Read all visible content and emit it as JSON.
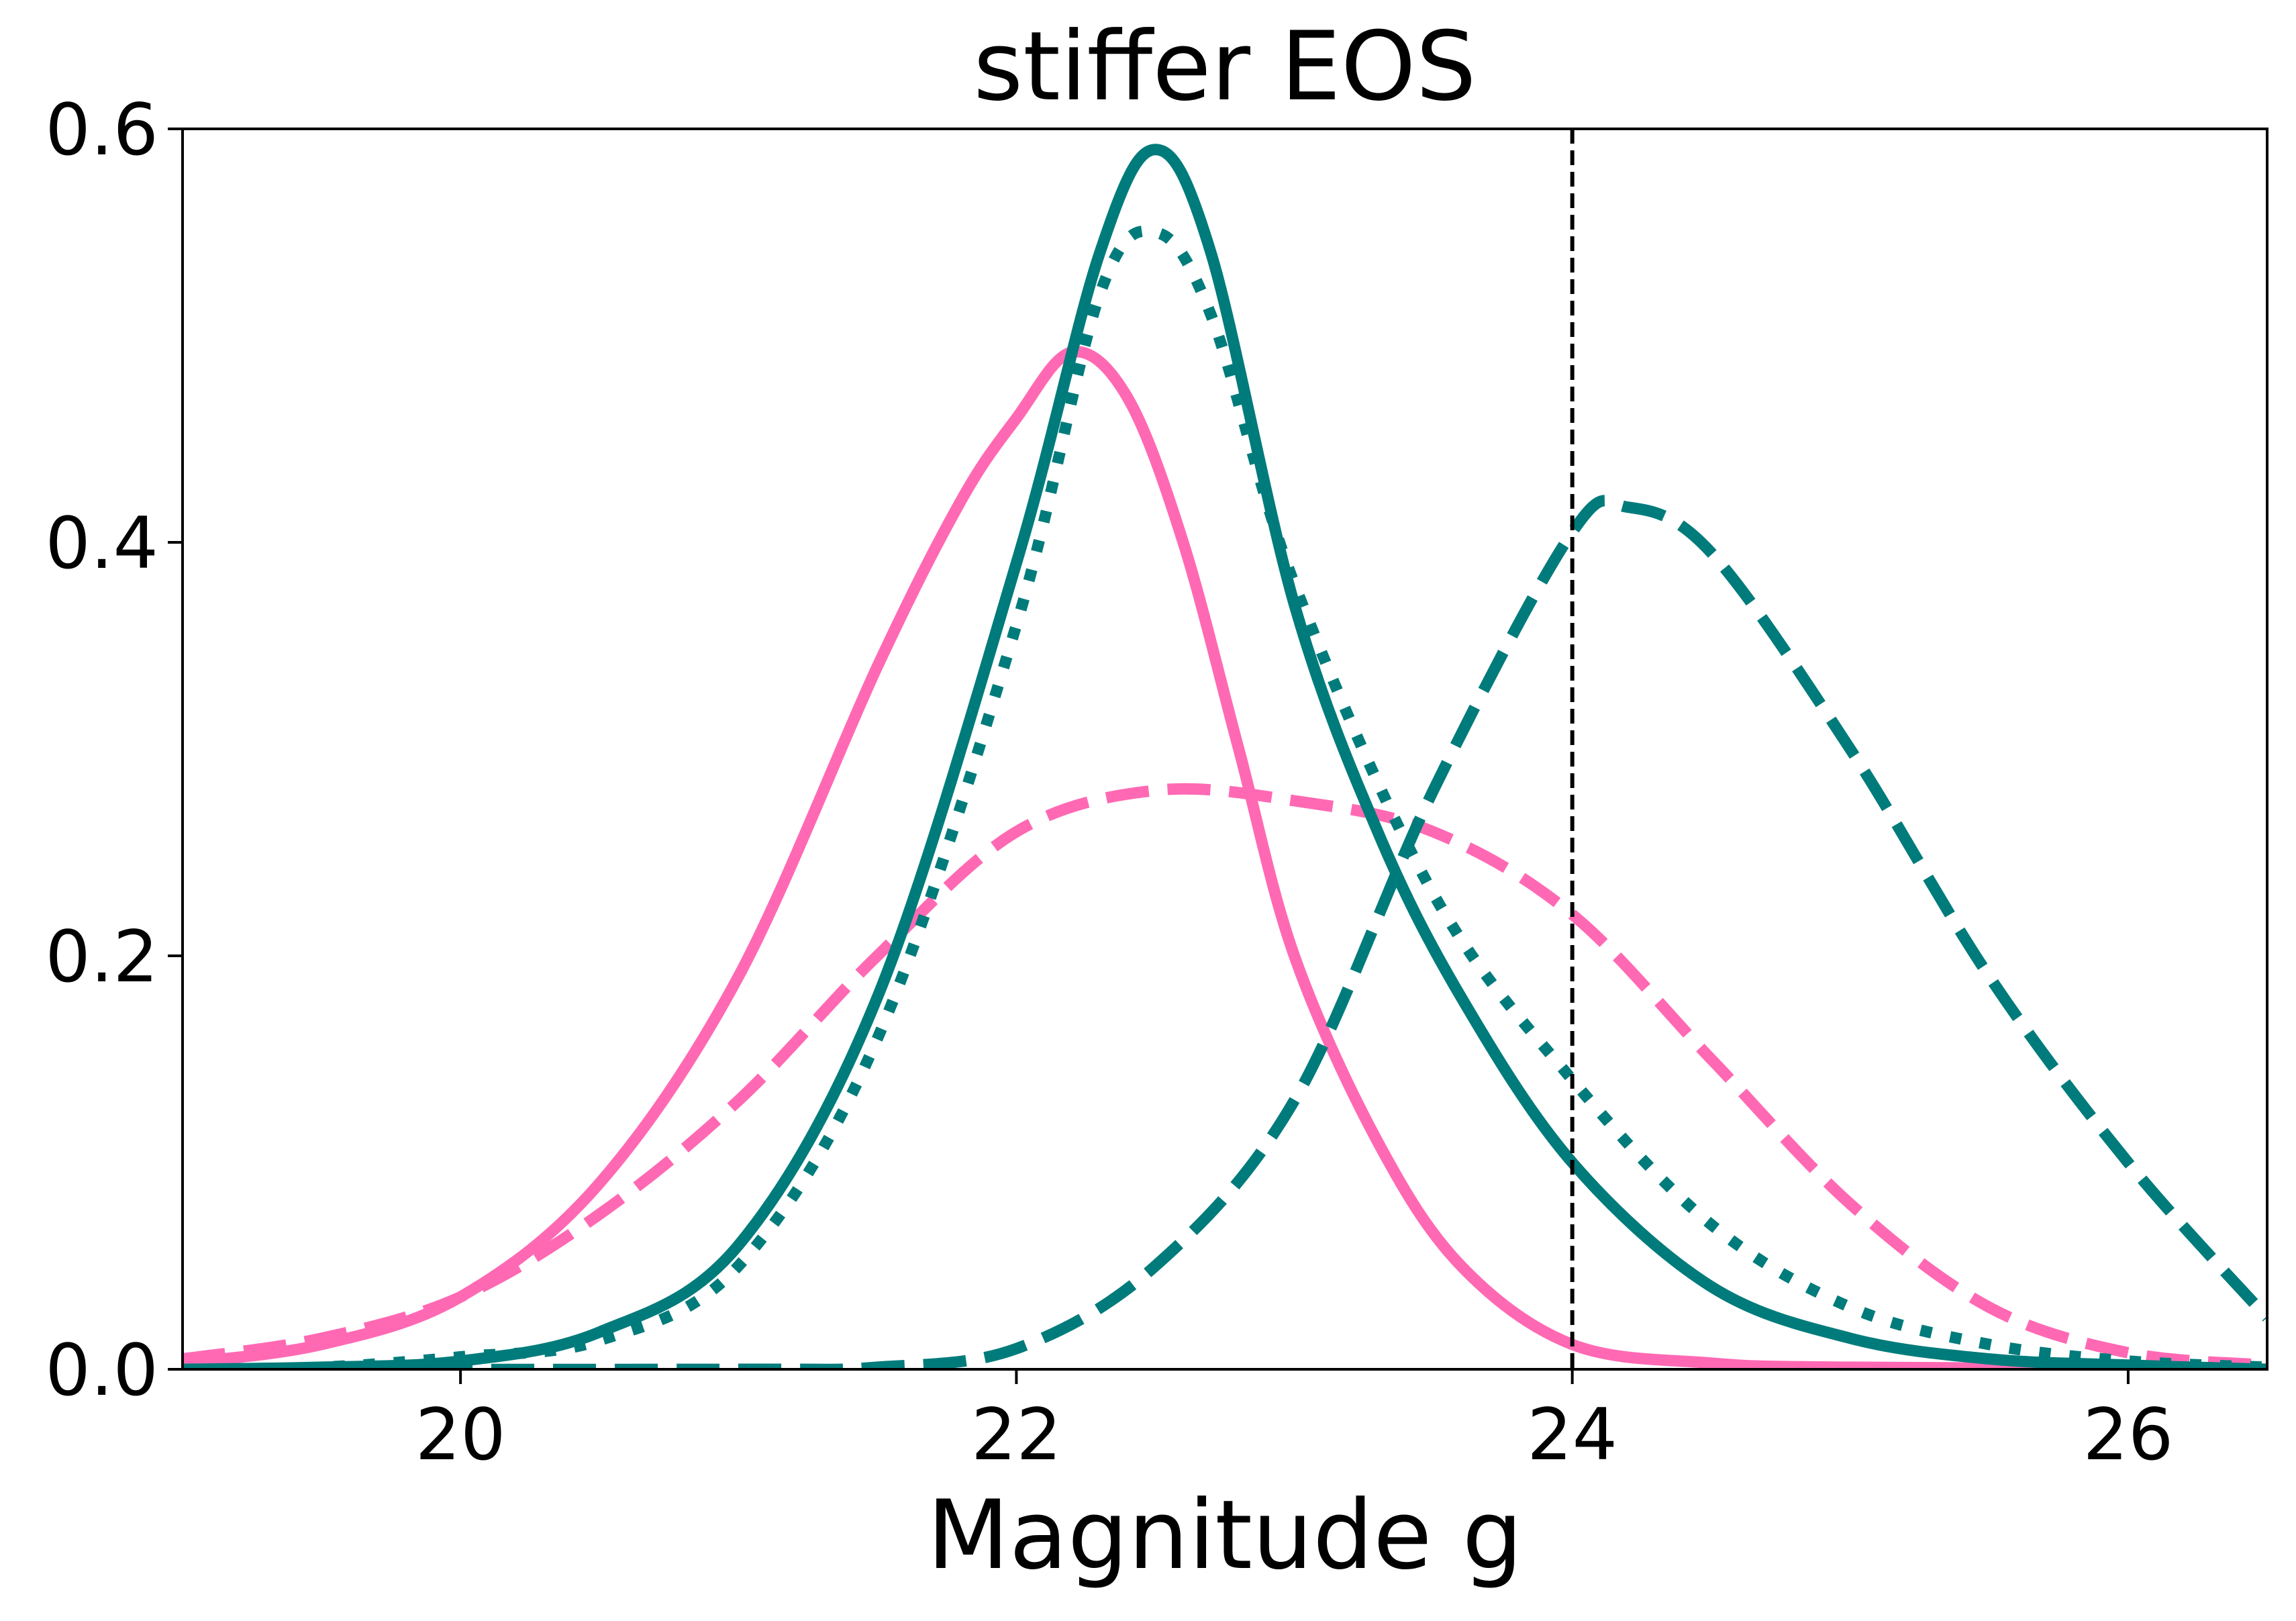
{
  "chart_data": {
    "type": "line",
    "title": "stiffer EOS",
    "xlabel": "Magnitude g",
    "ylabel": "",
    "xlim": [
      19.0,
      26.5
    ],
    "ylim": [
      0.0,
      0.6
    ],
    "x_ticks": [
      20,
      22,
      24,
      26
    ],
    "y_ticks": [
      0.0,
      0.2,
      0.4,
      0.6
    ],
    "x_tick_labels": [
      "20",
      "22",
      "24",
      "26"
    ],
    "y_tick_labels": [
      "0.0",
      "0.2",
      "0.4",
      "0.6"
    ],
    "grid": false,
    "legend": "none",
    "reference_line": {
      "x": 24.0,
      "style": "dashed",
      "color": "#000000"
    },
    "series": [
      {
        "name": "pink solid",
        "color": "#ff69b4",
        "style": "solid",
        "x": [
          19.0,
          19.5,
          20.0,
          20.5,
          21.0,
          21.5,
          21.8,
          22.0,
          22.2,
          22.4,
          22.6,
          22.8,
          23.0,
          23.3,
          23.6,
          24.0,
          24.5,
          25.0,
          26.5
        ],
        "y": [
          0.003,
          0.012,
          0.035,
          0.09,
          0.19,
          0.34,
          0.42,
          0.46,
          0.492,
          0.47,
          0.4,
          0.3,
          0.2,
          0.11,
          0.05,
          0.012,
          0.003,
          0.001,
          0.0
        ]
      },
      {
        "name": "pink dashed",
        "color": "#ff69b4",
        "style": "dashed",
        "x": [
          19.0,
          19.5,
          20.0,
          20.5,
          21.0,
          21.5,
          22.0,
          22.5,
          23.0,
          23.5,
          24.0,
          24.5,
          25.0,
          25.5,
          26.0,
          26.5
        ],
        "y": [
          0.005,
          0.015,
          0.035,
          0.075,
          0.13,
          0.2,
          0.26,
          0.28,
          0.275,
          0.26,
          0.22,
          0.15,
          0.08,
          0.03,
          0.008,
          0.002
        ]
      },
      {
        "name": "teal solid",
        "color": "#007b7b",
        "style": "solid",
        "x": [
          19.0,
          19.5,
          20.0,
          20.5,
          21.0,
          21.5,
          22.0,
          22.3,
          22.5,
          22.7,
          23.0,
          23.3,
          23.6,
          24.0,
          24.5,
          25.0,
          25.5,
          26.0,
          26.5
        ],
        "y": [
          0.0,
          0.001,
          0.004,
          0.018,
          0.06,
          0.18,
          0.39,
          0.54,
          0.59,
          0.54,
          0.37,
          0.26,
          0.18,
          0.1,
          0.04,
          0.015,
          0.005,
          0.002,
          0.0
        ]
      },
      {
        "name": "teal dotted",
        "color": "#007b7b",
        "style": "dotted",
        "x": [
          19.0,
          19.5,
          20.0,
          20.5,
          21.0,
          21.5,
          22.0,
          22.3,
          22.5,
          22.7,
          23.0,
          23.5,
          24.0,
          24.5,
          25.0,
          25.5,
          26.0,
          26.5
        ],
        "y": [
          0.0,
          0.001,
          0.006,
          0.014,
          0.05,
          0.16,
          0.36,
          0.52,
          0.55,
          0.51,
          0.38,
          0.23,
          0.14,
          0.07,
          0.03,
          0.012,
          0.004,
          0.001
        ]
      },
      {
        "name": "teal dashed",
        "color": "#007b7b",
        "style": "dashed",
        "x": [
          19.0,
          21.0,
          21.5,
          22.0,
          22.5,
          23.0,
          23.5,
          24.0,
          24.2,
          24.5,
          25.0,
          25.5,
          26.0,
          26.5
        ],
        "y": [
          0.0,
          0.0,
          0.001,
          0.01,
          0.05,
          0.13,
          0.28,
          0.405,
          0.417,
          0.395,
          0.3,
          0.19,
          0.1,
          0.025
        ]
      }
    ]
  }
}
